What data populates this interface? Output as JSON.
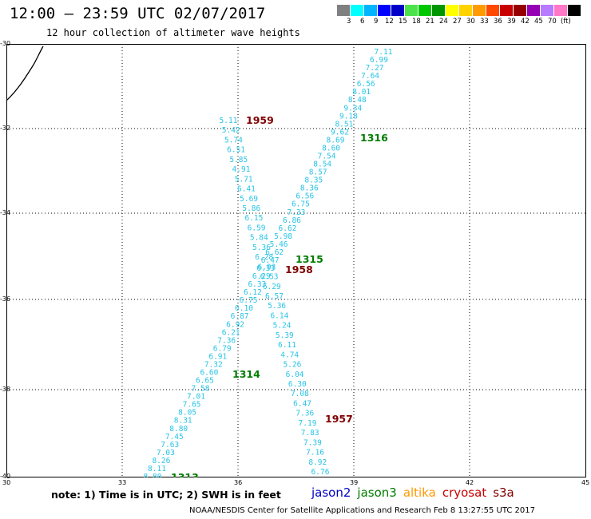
{
  "header": {
    "title": "12:00 — 23:59 UTC 02/07/2017",
    "subtitle": "12 hour collection of altimeter wave heights"
  },
  "legend": {
    "colors": [
      "#808080",
      "#00ffff",
      "#00b4ff",
      "#0000ff",
      "#0000c8",
      "#4ce24c",
      "#00c800",
      "#009600",
      "#ffff00",
      "#ffd200",
      "#ff9a00",
      "#ff4800",
      "#c80000",
      "#960000",
      "#9600b4",
      "#b87aff",
      "#ff78c8",
      "#000000"
    ],
    "labels": [
      "3",
      "6",
      "9",
      "12",
      "15",
      "18",
      "21",
      "24",
      "27",
      "30",
      "33",
      "36",
      "39",
      "42",
      "45",
      "70",
      "(ft)"
    ]
  },
  "map": {
    "lat_ticks": [
      "-30",
      "-32",
      "-34",
      "-36",
      "-38",
      "-40"
    ],
    "lon_ticks": [
      "30",
      "33",
      "36",
      "39",
      "42",
      "45"
    ],
    "coast_color": "#000000",
    "data_color": "#29c4e6",
    "pass_labels": [
      {
        "text": "1959",
        "color": "#800000"
      },
      {
        "text": "1316",
        "color": "#007d00"
      },
      {
        "text": "1315",
        "color": "#007d00"
      },
      {
        "text": "1958",
        "color": "#800000"
      },
      {
        "text": "1314",
        "color": "#007d00"
      },
      {
        "text": "1957",
        "color": "#800000"
      },
      {
        "text": "1313",
        "color": "#007d00"
      }
    ],
    "track_a_values": [
      "7.11",
      "6.99",
      "7.27",
      "7.64",
      "6.56",
      "8.01",
      "8.48",
      "9.34",
      "9.18",
      "8.51",
      "9.62",
      "8.69",
      "8.60",
      "7.54",
      "8.54",
      "8.57",
      "8.35",
      "8.36",
      "6.56",
      "6.75",
      "7.33",
      "6.86",
      "6.62",
      "5.98",
      "5.46",
      "6.62",
      "6.47",
      "6.33",
      "6.29",
      "6.33",
      "6.12",
      "6.75",
      "6.10",
      "6.87",
      "6.92",
      "6.21",
      "7.36",
      "6.79",
      "6.91",
      "7.32",
      "6.60",
      "6.65",
      "7.58",
      "7.01",
      "7.65",
      "8.05",
      "8.31",
      "8.80",
      "7.45",
      "7.63",
      "7.03",
      "8.26",
      "8.11",
      "8.80"
    ],
    "track_b_values": [
      "5.11",
      "5.42",
      "5.74",
      "6.51",
      "5.85",
      "4.91",
      "5.71",
      "6.41",
      "5.69",
      "5.86",
      "6.15",
      "6.59",
      "5.84",
      "5.36",
      "6.28",
      "6.03",
      "6.53",
      "6.29",
      "6.57",
      "5.36",
      "6.14",
      "5.24",
      "5.39",
      "6.11",
      "4.74",
      "5.26",
      "6.04",
      "6.30",
      "7.08",
      "6.47",
      "7.36",
      "7.19",
      "7.83",
      "7.39",
      "7.16",
      "8.92",
      "6.76"
    ]
  },
  "footer": {
    "note": "note: 1) Time is in UTC; 2) SWH is in feet",
    "satellites": [
      {
        "name": "jason2",
        "color": "#0000c8"
      },
      {
        "name": "jason3",
        "color": "#007d00"
      },
      {
        "name": "altika",
        "color": "#ff9a00"
      },
      {
        "name": "cryosat",
        "color": "#c80000"
      },
      {
        "name": "s3a",
        "color": "#800000"
      }
    ],
    "credit": "NOAA/NESDIS Center for Satellite Applications and Research    Feb  8 13:27:55 UTC 2017"
  }
}
